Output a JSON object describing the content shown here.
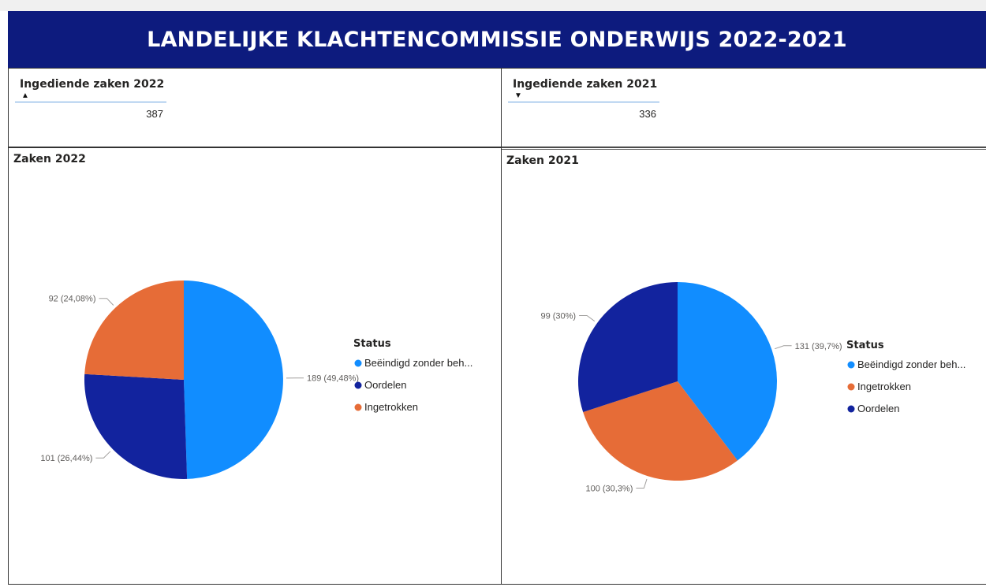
{
  "header": {
    "title": "LANDELIJKE KLACHTENCOMMISSIE ONDERWIJS 2022-2021",
    "background": "#0d1b7e"
  },
  "kpis": [
    {
      "title": "Ingediende zaken 2022",
      "trend": "up",
      "arrow": "▲",
      "value": "387"
    },
    {
      "title": "Ingediende zaken 2021",
      "trend": "down",
      "arrow": "▼",
      "value": "336"
    }
  ],
  "colors": {
    "Beëindigd zonder beh...": "#118dff",
    "Oordelen": "#12239e",
    "Ingetrokken": "#e66c37"
  },
  "chart_data": [
    {
      "type": "pie",
      "title": "Zaken 2022",
      "legend_title": "Status",
      "legend_position": "right",
      "categories": [
        "Beëindigd zonder beh...",
        "Oordelen",
        "Ingetrokken"
      ],
      "values": [
        189,
        101,
        92
      ],
      "labels": [
        "189 (49,48%)",
        "101 (26,44%)",
        "92 (24,08%)"
      ],
      "colors": [
        "#118dff",
        "#12239e",
        "#e66c37"
      ]
    },
    {
      "type": "pie",
      "title": "Zaken 2021",
      "legend_title": "Status",
      "legend_position": "right",
      "categories": [
        "Beëindigd zonder beh...",
        "Ingetrokken",
        "Oordelen"
      ],
      "values": [
        131,
        100,
        99
      ],
      "labels": [
        "131 (39,7%)",
        "100 (30,3%)",
        "99 (30%)"
      ],
      "colors": [
        "#118dff",
        "#e66c37",
        "#12239e"
      ]
    }
  ]
}
